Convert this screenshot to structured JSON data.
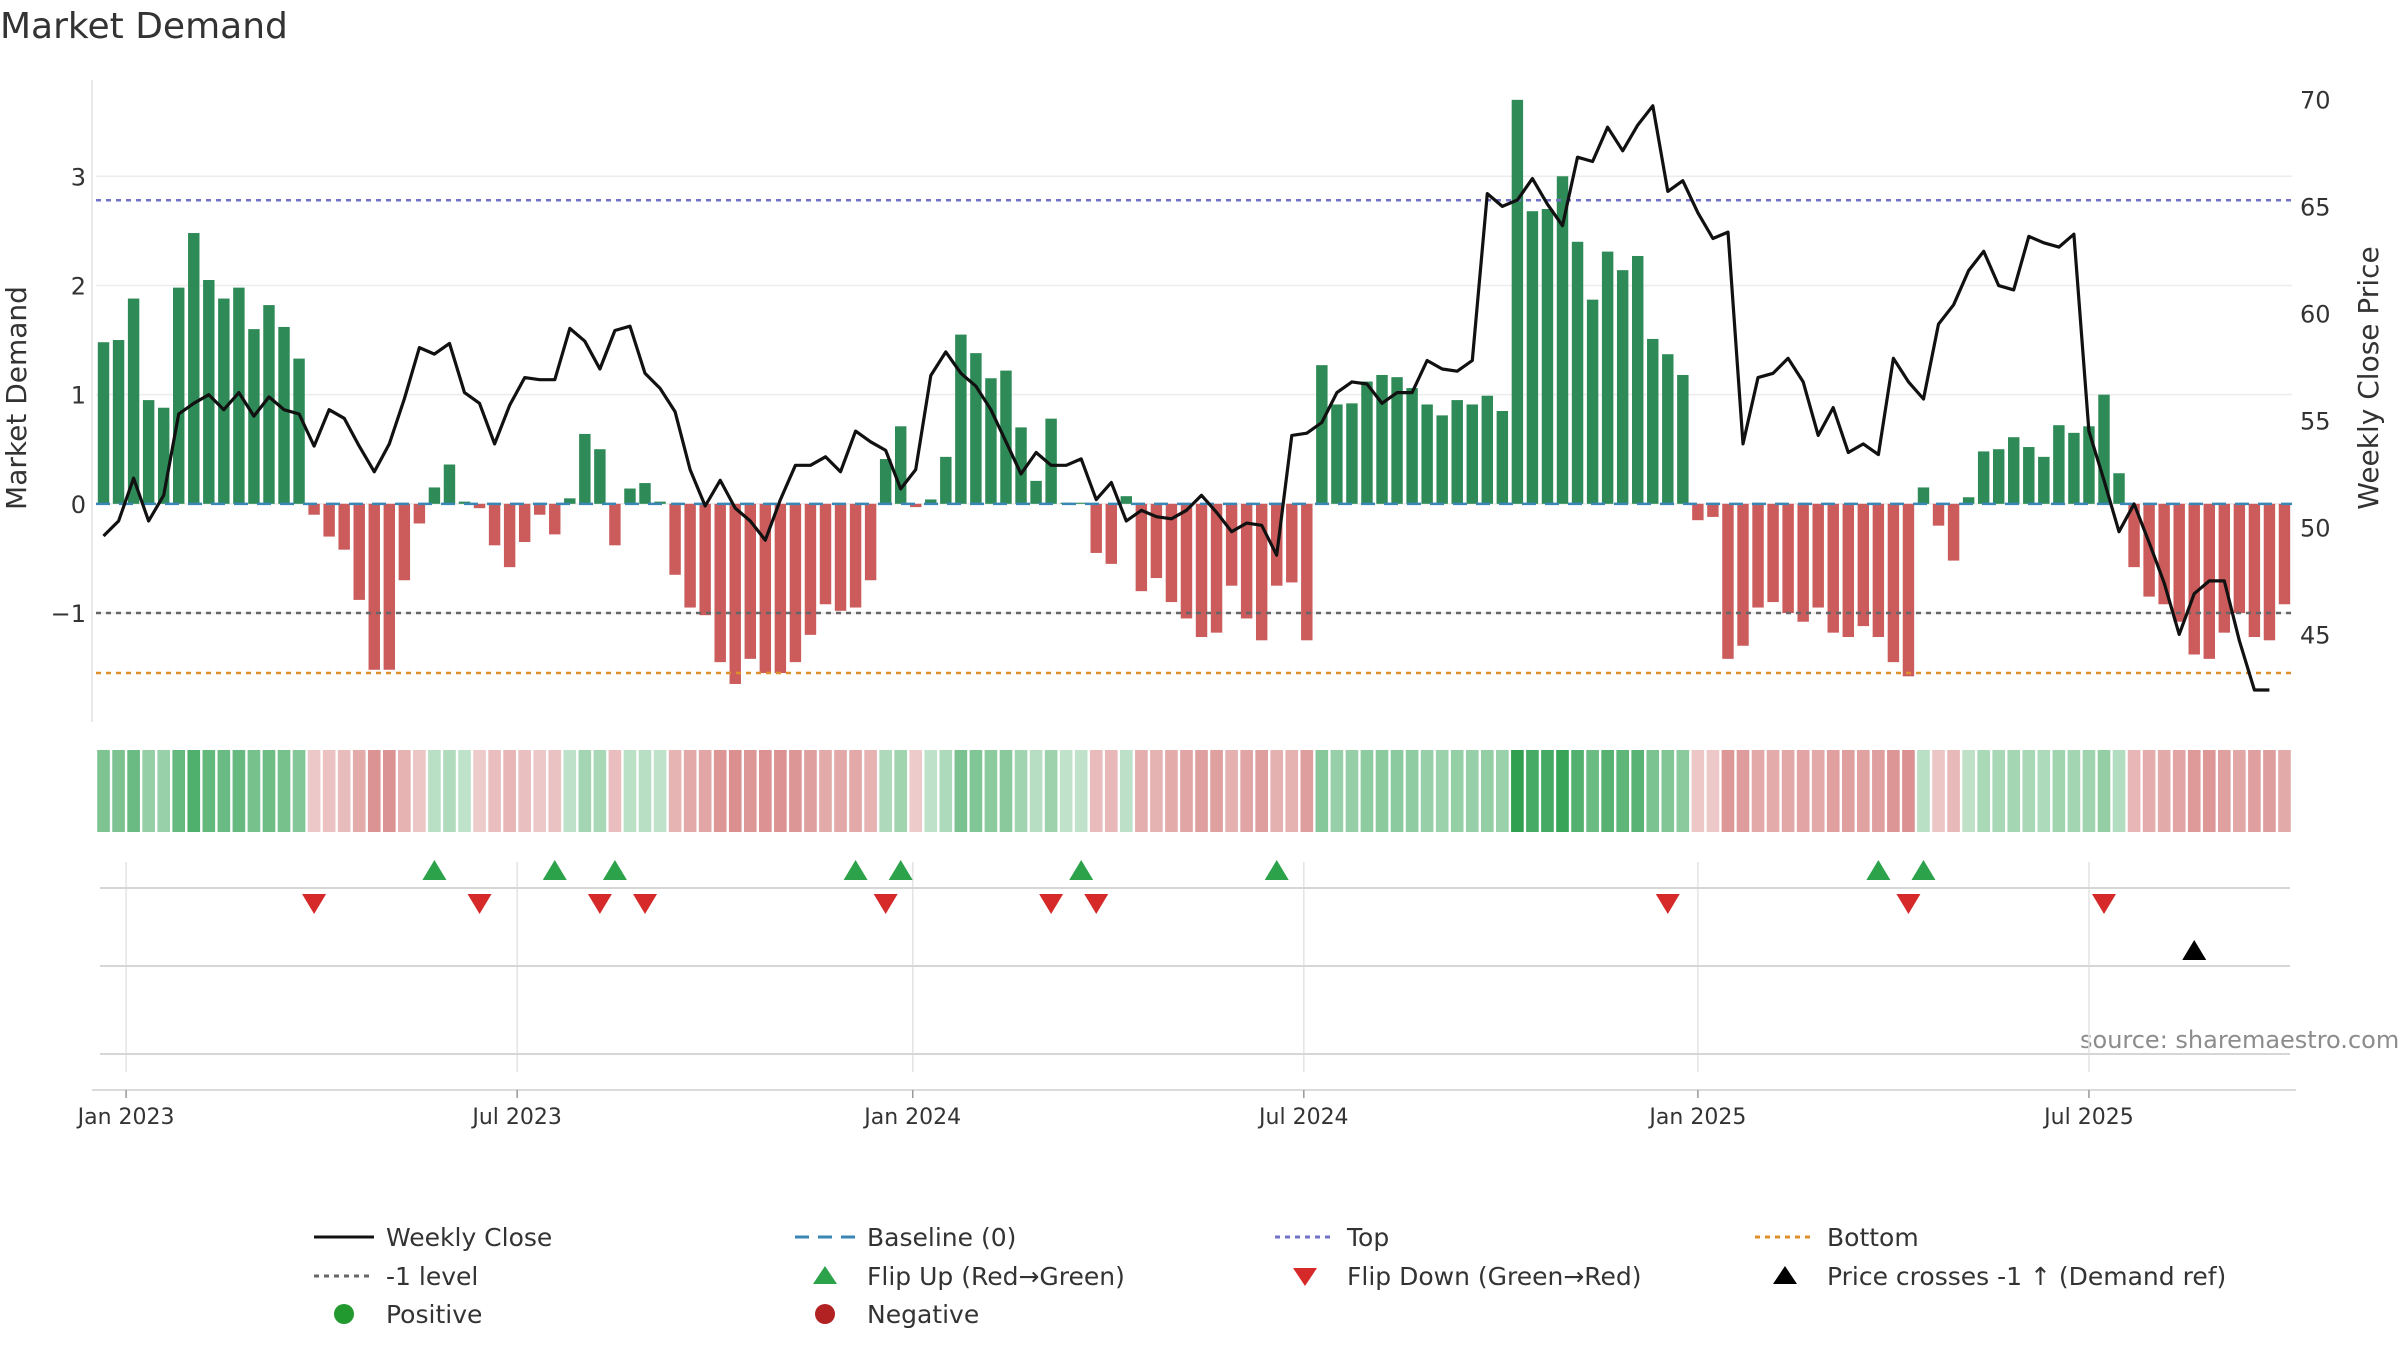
{
  "chart_data": {
    "type": "bar",
    "title": "Market Demand",
    "ylabel": "Market Demand",
    "y2label": "Weekly Close Price",
    "source": "source: sharemaestro.com",
    "ylim": [
      -1.98,
      3.9
    ],
    "y2lim": [
      41,
      71
    ],
    "yticks": [
      {
        "v": 3,
        "label": "3"
      },
      {
        "v": 2,
        "label": "2"
      },
      {
        "v": 1,
        "label": "1"
      },
      {
        "v": 0,
        "label": "0"
      },
      {
        "v": -1,
        "label": "−1"
      }
    ],
    "y2ticks": [
      {
        "v": 70,
        "label": "70"
      },
      {
        "v": 65,
        "label": "65"
      },
      {
        "v": 60,
        "label": "60"
      },
      {
        "v": 55,
        "label": "55"
      },
      {
        "v": 50,
        "label": "50"
      },
      {
        "v": 45,
        "label": "45"
      }
    ],
    "xticks": [
      {
        "i": 1.5,
        "label": "Jan 2023"
      },
      {
        "i": 27.5,
        "label": "Jul 2023"
      },
      {
        "i": 53.8,
        "label": "Jan 2024"
      },
      {
        "i": 79.8,
        "label": "Jul 2024"
      },
      {
        "i": 106,
        "label": "Jan 2025"
      },
      {
        "i": 132,
        "label": "Jul 2025"
      }
    ],
    "reference_lines": {
      "top": 2.78,
      "minus_one": -1.0,
      "bottom": -1.55
    },
    "demand": [
      1.48,
      1.5,
      1.88,
      0.95,
      0.88,
      1.98,
      2.48,
      2.05,
      1.88,
      1.98,
      1.6,
      1.82,
      1.62,
      1.33,
      -0.1,
      -0.3,
      -0.42,
      -0.88,
      -1.52,
      -1.52,
      -0.7,
      -0.18,
      0.15,
      0.36,
      0.02,
      -0.04,
      -0.38,
      -0.58,
      -0.35,
      -0.1,
      -0.28,
      0.05,
      0.64,
      0.5,
      -0.38,
      0.14,
      0.19,
      0.02,
      -0.65,
      -0.95,
      -1.02,
      -1.45,
      -1.65,
      -1.42,
      -1.55,
      -1.55,
      -1.45,
      -1.2,
      -0.92,
      -0.98,
      -0.95,
      -0.7,
      0.41,
      0.71,
      -0.03,
      0.04,
      0.43,
      1.55,
      1.38,
      1.15,
      1.22,
      0.7,
      0.21,
      0.78,
      0.01,
      0.01,
      -0.45,
      -0.55,
      0.07,
      -0.8,
      -0.68,
      -0.9,
      -1.05,
      -1.22,
      -1.18,
      -0.75,
      -1.05,
      -1.25,
      -0.75,
      -0.72,
      -1.25,
      1.27,
      0.91,
      0.92,
      1.12,
      1.18,
      1.16,
      1.06,
      0.91,
      0.81,
      0.95,
      0.91,
      0.99,
      0.85,
      3.7,
      2.68,
      2.7,
      3.0,
      2.4,
      1.87,
      2.31,
      2.14,
      2.27,
      1.51,
      1.37,
      1.18,
      -0.15,
      -0.12,
      -1.42,
      -1.3,
      -0.95,
      -0.9,
      -1.0,
      -1.08,
      -0.95,
      -1.18,
      -1.22,
      -1.12,
      -1.22,
      -1.45,
      -1.58,
      0.15,
      -0.2,
      -0.52,
      0.06,
      0.48,
      0.5,
      0.61,
      0.52,
      0.43,
      0.72,
      0.65,
      0.71,
      1.0,
      0.28,
      -0.58,
      -0.85,
      -0.92,
      -1.08,
      -1.38,
      -1.42,
      -1.18,
      -1.0,
      -1.22,
      -1.25,
      -0.92
    ],
    "close": [
      49.6,
      50.3,
      52.3,
      50.3,
      51.5,
      55.3,
      55.8,
      56.2,
      55.5,
      56.3,
      55.2,
      56.1,
      55.5,
      55.3,
      53.8,
      55.5,
      55.1,
      53.8,
      52.6,
      53.9,
      56.0,
      58.4,
      58.1,
      58.6,
      56.3,
      55.8,
      53.9,
      55.7,
      57.0,
      56.9,
      56.9,
      59.3,
      58.7,
      57.4,
      59.2,
      59.4,
      57.2,
      56.5,
      55.4,
      52.7,
      51.0,
      52.2,
      50.9,
      50.3,
      49.4,
      51.3,
      52.9,
      52.9,
      53.3,
      52.6,
      54.5,
      54.0,
      53.6,
      51.8,
      52.7,
      57.1,
      58.2,
      57.2,
      56.6,
      55.5,
      54.0,
      52.5,
      53.5,
      52.9,
      52.9,
      53.2,
      51.3,
      52.1,
      50.3,
      50.8,
      50.5,
      50.4,
      50.8,
      51.5,
      50.7,
      49.8,
      50.2,
      50.1,
      48.7,
      54.3,
      54.4,
      54.9,
      56.3,
      56.8,
      56.7,
      55.8,
      56.3,
      56.3,
      57.8,
      57.4,
      57.3,
      57.8,
      65.6,
      65.0,
      65.3,
      66.3,
      65.1,
      64.1,
      67.3,
      67.1,
      68.7,
      67.6,
      68.8,
      69.7,
      65.7,
      66.2,
      64.7,
      63.5,
      63.8,
      53.9,
      57.0,
      57.2,
      57.9,
      56.8,
      54.3,
      55.6,
      53.5,
      53.9,
      53.4,
      57.9,
      56.8,
      56.0,
      59.5,
      60.4,
      62.0,
      62.9,
      61.3,
      61.1,
      63.6,
      63.3,
      63.1,
      63.7,
      54.5,
      52.2,
      49.8,
      51.1,
      49.3,
      47.4,
      45.0,
      46.9,
      47.5,
      47.5,
      44.7,
      42.4,
      42.4
    ],
    "flip_up": [
      22,
      30,
      34,
      50,
      53,
      65,
      78,
      118,
      121
    ],
    "flip_down": [
      14,
      25,
      33,
      36,
      52,
      63,
      66,
      104,
      120,
      133
    ],
    "price_cross": [
      139
    ],
    "legend": [
      {
        "label": "Weekly Close",
        "kind": "line-solid",
        "color": "#111111"
      },
      {
        "label": "Baseline (0)",
        "kind": "line-dash",
        "color": "#3a86b5"
      },
      {
        "label": "Top",
        "kind": "line-dot",
        "color": "#7272c8"
      },
      {
        "label": "Bottom",
        "kind": "line-dot",
        "color": "#e0902a"
      },
      {
        "label": "-1 level",
        "kind": "line-dot",
        "color": "#666666"
      },
      {
        "label": "Flip Up (Red→Green)",
        "kind": "tri-up",
        "color": "#2ca24a"
      },
      {
        "label": "Flip Down (Green→Red)",
        "kind": "tri-down",
        "color": "#d62a2a"
      },
      {
        "label": "Price crosses -1 ↑ (Demand ref)",
        "kind": "tri-up",
        "color": "#000000"
      },
      {
        "label": "Positive",
        "kind": "dot",
        "color": "#22992f"
      },
      {
        "label": "Negative",
        "kind": "dot",
        "color": "#b22222"
      }
    ],
    "colors": {
      "positive": "#2e8a57",
      "negative": "#cc5c5c",
      "line": "#111111",
      "top": "#7272c8",
      "bottom": "#e0902a",
      "minus_one": "#666666",
      "baseline": "#3a86b5",
      "flip_up": "#2ca24a",
      "flip_down": "#d62a2a",
      "cross": "#000000"
    }
  }
}
